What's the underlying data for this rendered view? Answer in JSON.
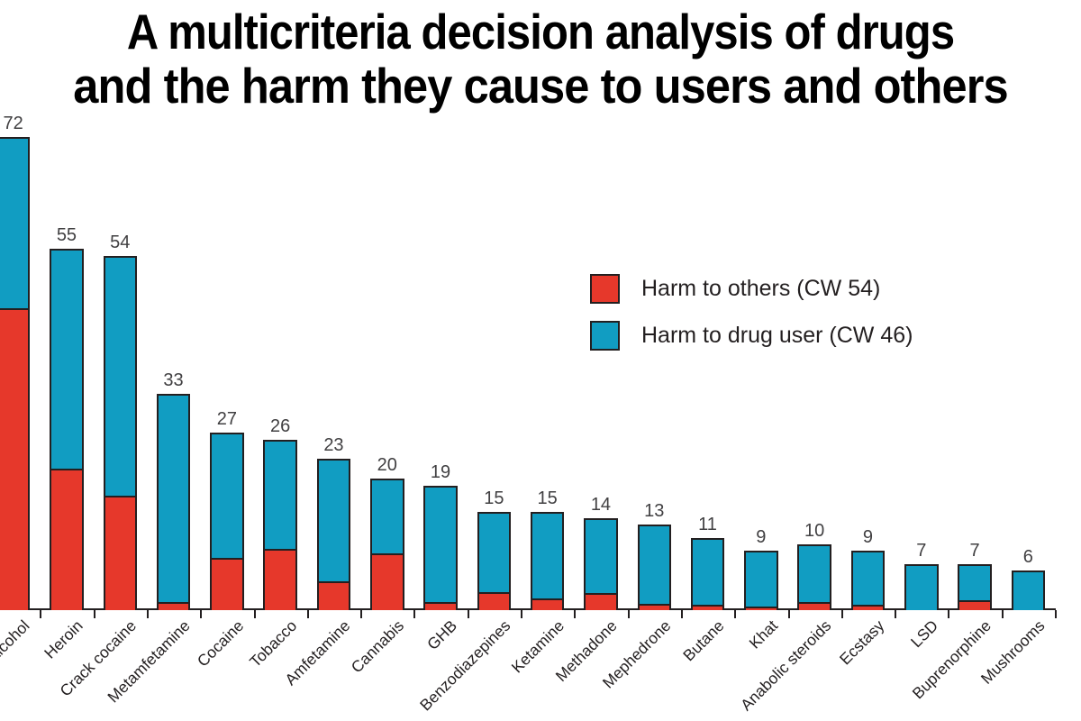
{
  "title": {
    "line1": "A multicriteria decision analysis of drugs",
    "line2": "and the harm they cause to users and others"
  },
  "legend": {
    "items": [
      {
        "label": "Harm to others (CW 54)",
        "color": "#e6382b"
      },
      {
        "label": "Harm to drug user (CW 46)",
        "color": "#119dc2"
      }
    ]
  },
  "colors": {
    "harm_to_others": "#e6382b",
    "harm_to_drug_user": "#119dc2",
    "axis_and_borders": "#231f20",
    "value_labels": "#414042"
  },
  "chart_data": {
    "type": "bar",
    "stacked": true,
    "title": "A multicriteria decision analysis of drugs and the harm they cause to users and others",
    "xlabel": "",
    "ylabel": "",
    "ylim": [
      0,
      75
    ],
    "grid": false,
    "legend_position": "upper right",
    "value_labels_above_bars": true,
    "categories": [
      "Alcohol",
      "Heroin",
      "Crack cocaine",
      "Metamfetamine",
      "Cocaine",
      "Tobacco",
      "Amfetamine",
      "Cannabis",
      "GHB",
      "Benzodiazepines",
      "Ketamine",
      "Methadone",
      "Mephedrone",
      "Butane",
      "Khat",
      "Anabolic steroids",
      "Ecstasy",
      "LSD",
      "Buprenorphine",
      "Mushrooms"
    ],
    "totals": [
      72,
      55,
      54,
      33,
      27,
      26,
      23,
      20,
      19,
      15,
      15,
      14,
      13,
      11,
      9,
      10,
      9,
      7,
      7,
      6
    ],
    "series": [
      {
        "name": "Harm to others (CW 54)",
        "color": "#e6382b",
        "values": [
          46,
          21.5,
          17.5,
          1.3,
          7.9,
          9.3,
          4.4,
          8.6,
          1.3,
          2.8,
          1.8,
          2.6,
          0.9,
          0.8,
          0.6,
          1.2,
          0.8,
          0,
          1.5,
          0
        ]
      },
      {
        "name": "Harm to drug user (CW 46)",
        "color": "#119dc2",
        "values": [
          26,
          33.5,
          36.5,
          31.7,
          19.1,
          16.7,
          18.6,
          11.4,
          17.7,
          12.2,
          13.2,
          11.4,
          12.1,
          10.2,
          8.4,
          8.8,
          8.2,
          7,
          5.5,
          6
        ]
      }
    ]
  }
}
